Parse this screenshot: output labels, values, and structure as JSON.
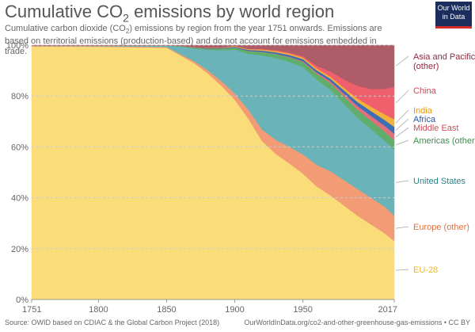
{
  "header": {
    "title_main": "Cumulative CO",
    "title_sub": "2",
    "title_rest": " emissions by world region",
    "subtitle_a": "Cumulative carbon dioxide (CO",
    "subtitle_sub": "2",
    "subtitle_b": ") emissions by region from the year 1751 onwards. Emissions are based on territorial emissions (production-based) and do not account for emissions embedded in trade.",
    "logo_line1": "Our World",
    "logo_line2": "in Data"
  },
  "footer": {
    "source": "Source: OWID based on CDIAC & the Global Carbon Project (2018)",
    "url": "OurWorldInData.org/co2-and-other-greenhouse-gas-emissions • CC BY"
  },
  "chart_data": {
    "type": "area",
    "stacked": true,
    "normalized": true,
    "x": [
      1751,
      1800,
      1850,
      1860,
      1870,
      1880,
      1890,
      1900,
      1910,
      1920,
      1930,
      1940,
      1950,
      1960,
      1970,
      1980,
      1990,
      2000,
      2010,
      2017
    ],
    "xticks": [
      1751,
      1800,
      1850,
      1900,
      1950,
      2017
    ],
    "xtick_labels": [
      "1751",
      "1800",
      "1850",
      "1900",
      "1950",
      "2017"
    ],
    "ylim": [
      0,
      100
    ],
    "yticks": [
      0,
      20,
      40,
      60,
      80,
      100
    ],
    "ytick_labels": [
      "0%",
      "20%",
      "40%",
      "60%",
      "80%",
      "100%"
    ],
    "grid": "horizontal",
    "legend_placement": "right",
    "series": [
      {
        "name": "EU-28",
        "color": "#fadc78",
        "values": [
          99.5,
          99.4,
          99.0,
          96,
          93,
          89,
          84,
          78,
          71,
          62,
          57,
          53,
          49,
          44.5,
          41,
          37,
          33,
          29.5,
          26,
          23
        ]
      },
      {
        "name": "Europe (other)",
        "color": "#f29b74",
        "values": [
          0.2,
          0.2,
          0.3,
          0.5,
          0.8,
          1.2,
          1.8,
          2.5,
          3.5,
          4.5,
          5.5,
          6.5,
          7.5,
          8.5,
          9.5,
          10,
          10.5,
          10.5,
          10.5,
          10
        ]
      },
      {
        "name": "United States",
        "color": "#6ab3b8",
        "values": [
          0.1,
          0.2,
          0.5,
          3,
          5,
          8,
          12,
          17,
          22,
          29,
          32,
          33,
          34,
          33.5,
          32,
          30,
          28,
          27,
          26,
          26
        ]
      },
      {
        "name": "Americas (other)",
        "color": "#5fae6c",
        "values": [
          0.05,
          0.05,
          0.1,
          0.2,
          0.3,
          0.5,
          0.7,
          0.9,
          1.1,
          1.3,
          1.5,
          1.8,
          2.0,
          2.3,
          2.6,
          2.9,
          3.1,
          3.3,
          3.5,
          3.6
        ]
      },
      {
        "name": "Middle East",
        "color": "#e0707a",
        "values": [
          0,
          0,
          0,
          0,
          0,
          0,
          0,
          0,
          0.05,
          0.1,
          0.15,
          0.2,
          0.3,
          0.5,
          0.8,
          1.1,
          1.5,
          1.9,
          2.3,
          2.6
        ]
      },
      {
        "name": "Africa",
        "color": "#3c6fb5",
        "values": [
          0,
          0,
          0,
          0.05,
          0.1,
          0.15,
          0.2,
          0.3,
          0.4,
          0.5,
          0.6,
          0.7,
          0.8,
          0.9,
          1.0,
          1.3,
          1.6,
          1.9,
          2.3,
          2.7
        ]
      },
      {
        "name": "India",
        "color": "#f3b13a",
        "values": [
          0,
          0,
          0,
          0.05,
          0.1,
          0.1,
          0.2,
          0.3,
          0.3,
          0.4,
          0.5,
          0.6,
          0.6,
          0.7,
          0.8,
          1.0,
          1.3,
          1.7,
          2.2,
          3.0
        ]
      },
      {
        "name": "China",
        "color": "#f0606c",
        "values": [
          0,
          0,
          0,
          0,
          0,
          0,
          0,
          0.05,
          0.1,
          0.2,
          0.3,
          0.4,
          0.5,
          1.0,
          2.0,
          3.3,
          5.0,
          7.0,
          10.0,
          12.7
        ]
      },
      {
        "name": "Asia and Pacific (other)",
        "color": "#ad5c68",
        "values": [
          0.15,
          0.15,
          0.1,
          0.2,
          0.7,
          1.05,
          0.9,
          0.25,
          1.45,
          1.5,
          1.95,
          2.8,
          4.3,
          8.1,
          10.3,
          13.4,
          16.0,
          17.2,
          17.2,
          16.4
        ]
      }
    ],
    "legend_labels": [
      {
        "name": "Asia and Pacific (other)",
        "lines": [
          "Asia and Pacific",
          "(other)"
        ],
        "color": "#8f2a3f"
      },
      {
        "name": "China",
        "lines": [
          "China"
        ],
        "color": "#d9404c"
      },
      {
        "name": "India",
        "lines": [
          "India"
        ],
        "color": "#e59a13"
      },
      {
        "name": "Africa",
        "lines": [
          "Africa"
        ],
        "color": "#2a5aa4"
      },
      {
        "name": "Middle East",
        "lines": [
          "Middle East"
        ],
        "color": "#c9505a"
      },
      {
        "name": "Americas (other)",
        "lines": [
          "Americas (other)"
        ],
        "color": "#3e8c4e"
      },
      {
        "name": "United States",
        "lines": [
          "United States"
        ],
        "color": "#2e8088"
      },
      {
        "name": "Europe (other)",
        "lines": [
          "Europe (other)"
        ],
        "color": "#d9744a"
      },
      {
        "name": "EU-28",
        "lines": [
          "EU-28"
        ],
        "color": "#e8b728"
      }
    ]
  }
}
